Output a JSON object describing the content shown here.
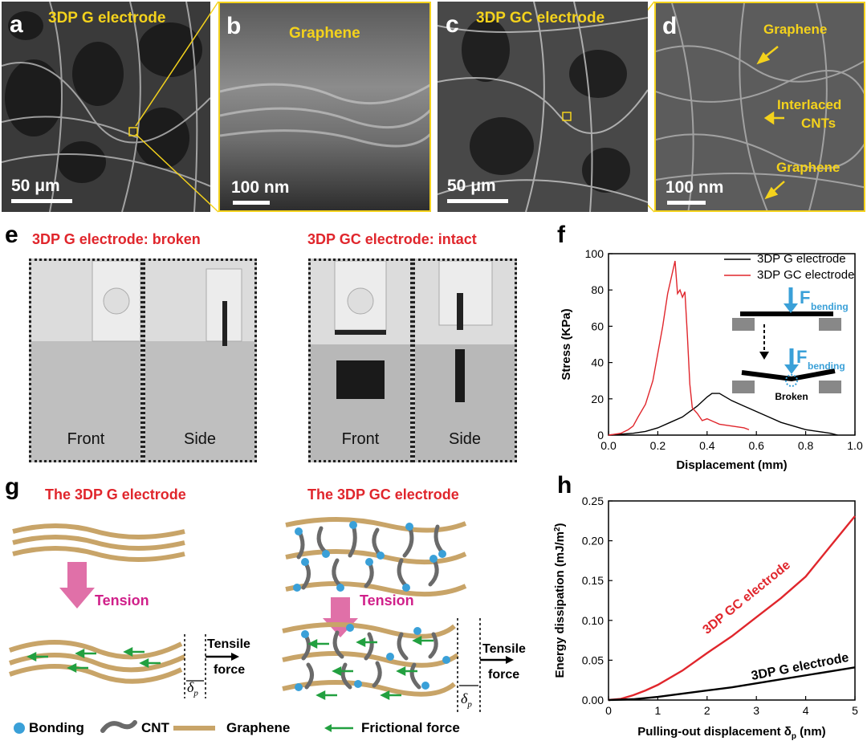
{
  "panels": {
    "a": {
      "letter": "a",
      "title": "3DP G electrode",
      "scale": "50 μm"
    },
    "b": {
      "letter": "b",
      "title": "Graphene",
      "scale": "100 nm"
    },
    "c": {
      "letter": "c",
      "title": "3DP GC electrode",
      "scale": "50 μm"
    },
    "d": {
      "letter": "d",
      "scale": "100 nm",
      "labels": [
        "Graphene",
        "Interlaced",
        "CNTs",
        "Graphene"
      ]
    },
    "e": {
      "letter": "e",
      "left_title": "3DP G electrode: broken",
      "right_title": "3DP GC electrode: intact",
      "captions": [
        "Front",
        "Side",
        "Front",
        "Side"
      ]
    },
    "f": {
      "letter": "f"
    },
    "g": {
      "letter": "g",
      "left_title": "The 3DP G electrode",
      "right_title": "The 3DP GC electrode",
      "tension": "Tension",
      "tensile1": "Tensile",
      "tensile2": "force",
      "delta": "δ",
      "delta_sub": "p",
      "legend": {
        "bonding": "Bonding",
        "cnt": "CNT",
        "graphene": "Graphene",
        "friction": "Frictional force"
      }
    },
    "h": {
      "letter": "h"
    }
  },
  "chart_data": [
    {
      "panel": "f",
      "type": "line",
      "xlabel": "Displacement (mm)",
      "ylabel": "Stress (KPa)",
      "xlim": [
        0,
        1.0
      ],
      "ylim": [
        0,
        100
      ],
      "xticks": [
        "0.0",
        "0.2",
        "0.4",
        "0.6",
        "0.8",
        "1.0"
      ],
      "yticks": [
        "0",
        "20",
        "40",
        "60",
        "80",
        "100"
      ],
      "legend_position": "top-right",
      "series": [
        {
          "name": "3DP G electrode",
          "color": "#000000",
          "x": [
            0,
            0.05,
            0.1,
            0.15,
            0.2,
            0.25,
            0.3,
            0.33,
            0.36,
            0.4,
            0.42,
            0.45,
            0.5,
            0.55,
            0.6,
            0.65,
            0.7,
            0.75,
            0.8,
            0.85,
            0.9,
            0.93
          ],
          "y": [
            0,
            0.5,
            1,
            2,
            4,
            7,
            10,
            13,
            16,
            21,
            23,
            23,
            19,
            16,
            13,
            10,
            7,
            5,
            3,
            2,
            1,
            0
          ]
        },
        {
          "name": "3DP GC electrode",
          "color": "#e0262c",
          "x": [
            0,
            0.05,
            0.08,
            0.1,
            0.12,
            0.15,
            0.18,
            0.2,
            0.22,
            0.24,
            0.26,
            0.27,
            0.28,
            0.29,
            0.3,
            0.31,
            0.32,
            0.33,
            0.34,
            0.36,
            0.38,
            0.4,
            0.45,
            0.5,
            0.55,
            0.57
          ],
          "y": [
            0,
            1,
            3,
            5,
            10,
            17,
            30,
            45,
            60,
            78,
            90,
            96,
            78,
            80,
            76,
            79,
            55,
            28,
            15,
            12,
            8,
            9,
            6,
            5,
            4,
            3
          ]
        }
      ],
      "inset": {
        "force": "F",
        "force_sub": "bending",
        "broken": "Broken"
      }
    },
    {
      "panel": "h",
      "type": "line",
      "xlabel": "Pulling-out displacement δ",
      "xlabel_sub": "p",
      "xlabel_unit": " (nm)",
      "ylabel": "Energy dissipation (mJ/m",
      "ylabel_sup": "2",
      "ylabel_end": ")",
      "xlim": [
        0,
        5
      ],
      "ylim": [
        0,
        0.25
      ],
      "xticks": [
        "0",
        "1",
        "2",
        "3",
        "4",
        "5"
      ],
      "yticks": [
        "0.00",
        "0.05",
        "0.10",
        "0.15",
        "0.20",
        "0.25"
      ],
      "series": [
        {
          "name": "3DP GC electrode",
          "color": "#e0262c",
          "x": [
            0,
            0.25,
            0.5,
            0.75,
            1,
            1.5,
            2,
            2.5,
            3,
            3.5,
            4,
            4.5,
            5
          ],
          "y": [
            0,
            0.0015,
            0.006,
            0.012,
            0.019,
            0.037,
            0.059,
            0.08,
            0.104,
            0.128,
            0.155,
            0.193,
            0.231
          ]
        },
        {
          "name": "3DP G electrode",
          "color": "#000000",
          "x": [
            0,
            0.5,
            1,
            1.5,
            2,
            2.5,
            3,
            3.5,
            4,
            4.5,
            5
          ],
          "y": [
            0,
            0.001,
            0.004,
            0.008,
            0.012,
            0.016,
            0.021,
            0.026,
            0.031,
            0.036,
            0.041
          ]
        }
      ]
    }
  ]
}
